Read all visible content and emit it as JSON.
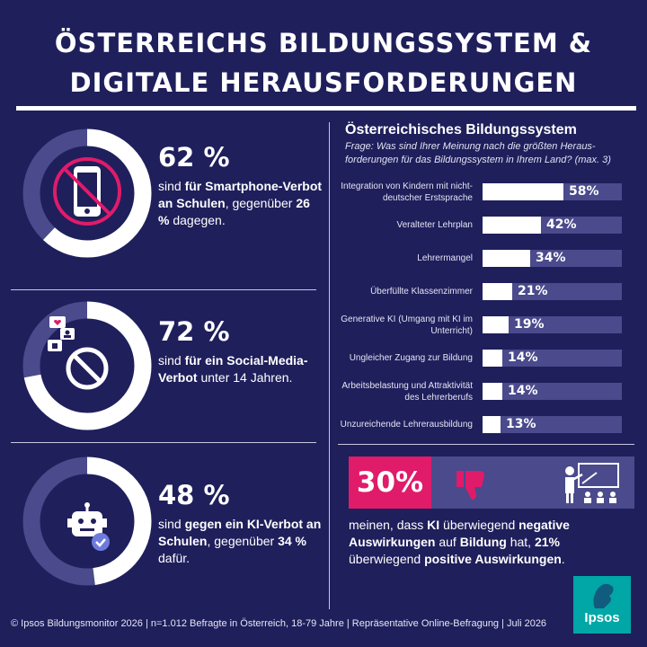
{
  "title": {
    "line1": "ÖSTERREICHS BILDUNGSSYSTEM &",
    "line2": "DIGITALE HERAUSFORDERUNGEN"
  },
  "stats": [
    {
      "value": "62 %",
      "segments": [
        {
          "t": "sind ",
          "b": false
        },
        {
          "t": "für Smartphone-Verbot an Schulen",
          "b": true
        },
        {
          "t": ", gegenüber ",
          "b": false
        },
        {
          "t": "26 %",
          "b": true
        },
        {
          "t": " dagegen.",
          "b": false
        }
      ],
      "fraction": 0.62,
      "icon": "smartphone-ban-icon"
    },
    {
      "value": "72 %",
      "segments": [
        {
          "t": "sind ",
          "b": false
        },
        {
          "t": "für ein Social-Media-Verbot",
          "b": true
        },
        {
          "t": " unter 14 Jahren.",
          "b": false
        }
      ],
      "fraction": 0.72,
      "icon": "social-media-ban-icon"
    },
    {
      "value": "48 %",
      "segments": [
        {
          "t": "sind ",
          "b": false
        },
        {
          "t": "gegen ein KI-Verbot an Schulen",
          "b": true
        },
        {
          "t": ", gegenüber ",
          "b": false
        },
        {
          "t": "34 %",
          "b": true
        },
        {
          "t": " dafür.",
          "b": false
        }
      ],
      "fraction": 0.48,
      "icon": "robot-icon"
    }
  ],
  "colors": {
    "background": "#1f1f5c",
    "track": "#4a4a8c",
    "accent": "#e01b6a",
    "ipsos": "#00a7a6",
    "fill": "#ffffff"
  },
  "bildungssystem": {
    "title": "Österreichisches Bildungssystem",
    "question": "Frage: Was sind Ihrer Meinung nach die größten Heraus-forderungen für das Bildungssystem in Ihrem Land? (max. 3)"
  },
  "chart_data": {
    "type": "bar",
    "orientation": "horizontal",
    "categories": [
      "Integration von Kindern mit nicht-deutscher Erstsprache",
      "Veralteter Lehrplan",
      "Lehrermangel",
      "Überfüllte Klassenzimmer",
      "Generative KI (Umgang mit KI im Unterricht)",
      "Ungleicher Zugang zur Bildung",
      "Arbeitsbelastung und Attraktivität des Lehrerberufs",
      "Unzureichende Lehrerausbildung"
    ],
    "values": [
      58,
      42,
      34,
      21,
      19,
      14,
      14,
      13
    ],
    "value_labels": [
      "58%",
      "42%",
      "34%",
      "21%",
      "19%",
      "14%",
      "14%",
      "13%"
    ],
    "xlim": [
      0,
      100
    ]
  },
  "ki": {
    "percent": "30%",
    "text_segments": [
      {
        "t": "meinen, dass ",
        "b": false
      },
      {
        "t": "KI",
        "b": true
      },
      {
        "t": " überwiegend ",
        "b": false
      },
      {
        "t": "negative Auswirkungen",
        "b": true
      },
      {
        "t": " auf ",
        "b": false
      },
      {
        "t": "Bildung",
        "b": true
      },
      {
        "t": " hat, ",
        "b": false
      },
      {
        "t": "21%",
        "b": true
      },
      {
        "t": " überwiegend ",
        "b": false
      },
      {
        "t": "positive Auswirkungen",
        "b": true
      },
      {
        "t": ".",
        "b": false
      }
    ],
    "icons": [
      "thumbs-down-icon",
      "teacher-presentation-icon"
    ]
  },
  "footer": "© Ipsos Bildungsmonitor 2026 | n=1.012 Befragte in Österreich, 18-79 Jahre | Repräsentative Online-Befragung | Juli 2026",
  "logo": "Ipsos"
}
